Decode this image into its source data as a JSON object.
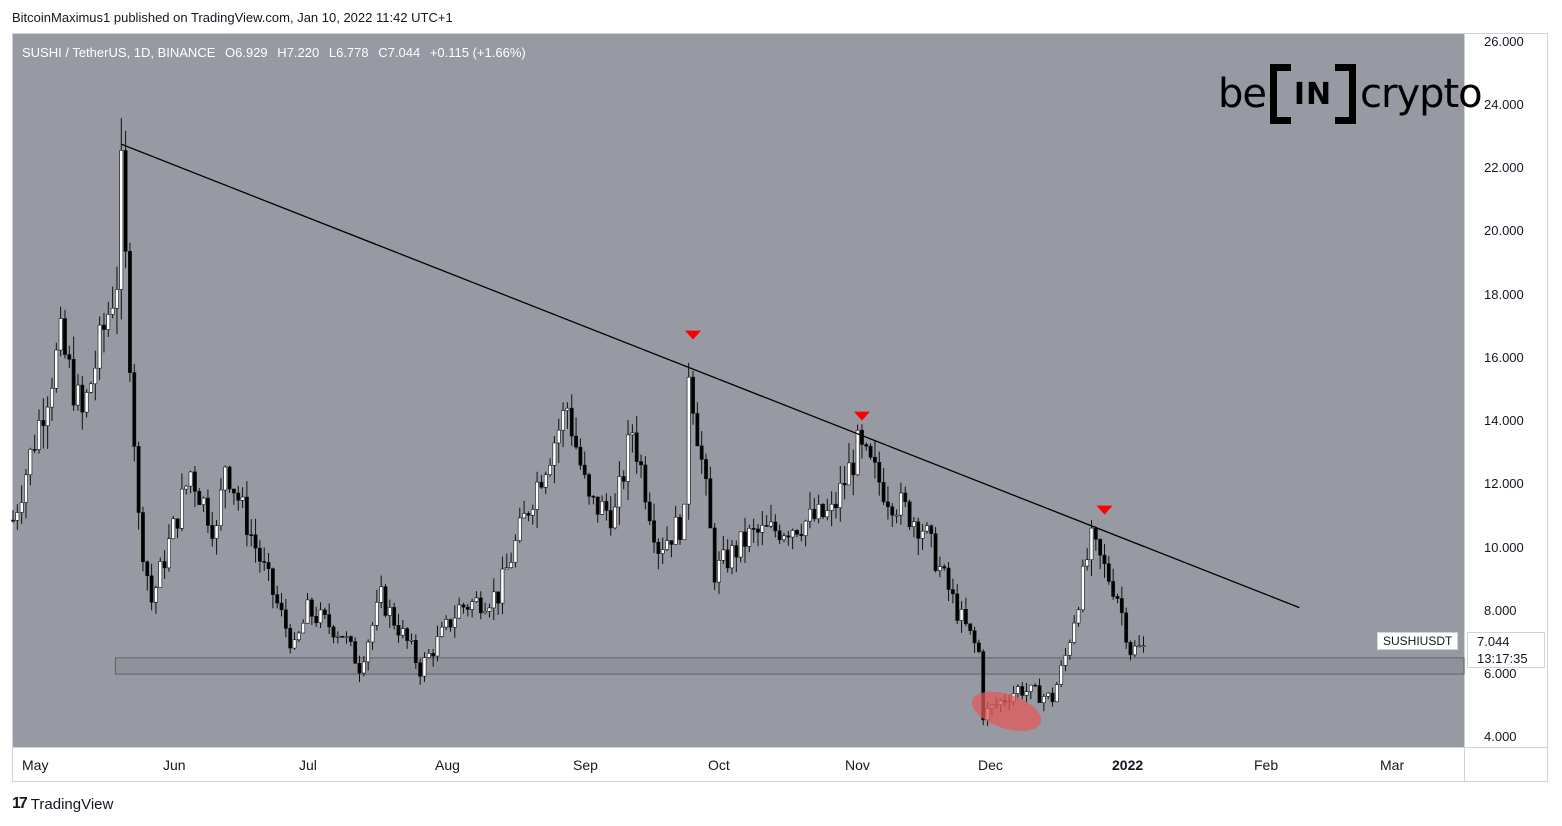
{
  "publish_line": "BitcoinMaximus1 published on TradingView.com, Jan 10, 2022 11:42 UTC+1",
  "legend": {
    "symbol": "SUSHI / TetherUS, 1D, BINANCE",
    "open_key": "O",
    "open": "6.929",
    "high_key": "H",
    "high": "7.220",
    "low_key": "L",
    "low": "6.778",
    "close_key": "C",
    "close": "7.044",
    "change": "+0.115 (+1.66%)"
  },
  "unit_badge": "USDT",
  "logo": {
    "left": "be",
    "middle": "IN",
    "right": "crypto"
  },
  "price_labels": [
    "26.000",
    "24.000",
    "22.000",
    "20.000",
    "18.000",
    "16.000",
    "14.000",
    "12.000",
    "10.000",
    "8.000",
    "6.000",
    "4.000"
  ],
  "time_labels": [
    "May",
    "Jun",
    "Jul",
    "Aug",
    "Sep",
    "Oct",
    "Nov",
    "Dec",
    "2022",
    "Feb",
    "Mar"
  ],
  "symbol_tag": "SUSHIUSDT",
  "last_price": {
    "value": "7.044",
    "timer": "13:17:35"
  },
  "watermark": {
    "mark": "17",
    "text": "TradingView"
  },
  "colors": {
    "plot_bg": "#979aa3",
    "candle_up": "#ffffff",
    "candle_down": "#000000",
    "trendline": "#000000",
    "marker": "#ff0000",
    "support_zone": "#8a8d96",
    "highlight": "#e05a5a"
  },
  "chart_data": {
    "type": "candlestick",
    "symbol": "SUSHI / TetherUS",
    "interval": "1D",
    "exchange": "BINANCE",
    "ylim": [
      4.0,
      26.0
    ],
    "y_ticks": [
      26,
      24,
      22,
      20,
      18,
      16,
      14,
      12,
      10,
      8,
      6,
      4
    ],
    "x_ticks": [
      "May",
      "Jun",
      "Jul",
      "Aug",
      "Sep",
      "Oct",
      "Nov",
      "Dec",
      "2022",
      "Feb",
      "Mar"
    ],
    "x_range": [
      "2021-04-24",
      "2022-03-25"
    ],
    "close_path": [
      {
        "date": "2021-04-24",
        "close": 11.0
      },
      {
        "date": "2021-05-05",
        "close": 16.5
      },
      {
        "date": "2021-05-10",
        "close": 14.2
      },
      {
        "date": "2021-05-18",
        "close": 18.5
      },
      {
        "date": "2021-05-19",
        "close": 21.5
      },
      {
        "date": "2021-05-23",
        "close": 11.0
      },
      {
        "date": "2021-05-26",
        "close": 8.5
      },
      {
        "date": "2021-06-04",
        "close": 12.5
      },
      {
        "date": "2021-06-10",
        "close": 10.6
      },
      {
        "date": "2021-06-12",
        "close": 12.8
      },
      {
        "date": "2021-06-20",
        "close": 9.8
      },
      {
        "date": "2021-06-28",
        "close": 7.0
      },
      {
        "date": "2021-07-01",
        "close": 8.2
      },
      {
        "date": "2021-07-09",
        "close": 7.5
      },
      {
        "date": "2021-07-13",
        "close": 6.5
      },
      {
        "date": "2021-07-18",
        "close": 8.6
      },
      {
        "date": "2021-07-25",
        "close": 7.0
      },
      {
        "date": "2021-07-27",
        "close": 6.4
      },
      {
        "date": "2021-08-05",
        "close": 8.3
      },
      {
        "date": "2021-08-14",
        "close": 8.7
      },
      {
        "date": "2021-08-22",
        "close": 11.8
      },
      {
        "date": "2021-08-30",
        "close": 14.5
      },
      {
        "date": "2021-09-04",
        "close": 11.5
      },
      {
        "date": "2021-09-10",
        "close": 11.2
      },
      {
        "date": "2021-09-14",
        "close": 13.8
      },
      {
        "date": "2021-09-20",
        "close": 10.2
      },
      {
        "date": "2021-09-26",
        "close": 11.0
      },
      {
        "date": "2021-09-27",
        "close": 15.8
      },
      {
        "date": "2021-10-01",
        "close": 11.8
      },
      {
        "date": "2021-10-03",
        "close": 9.4
      },
      {
        "date": "2021-10-11",
        "close": 10.5
      },
      {
        "date": "2021-10-20",
        "close": 10.8
      },
      {
        "date": "2021-10-30",
        "close": 11.2
      },
      {
        "date": "2021-11-05",
        "close": 13.2
      },
      {
        "date": "2021-11-12",
        "close": 11.8
      },
      {
        "date": "2021-11-20",
        "close": 10.8
      },
      {
        "date": "2021-11-28",
        "close": 8.2
      },
      {
        "date": "2021-12-03",
        "close": 6.9
      },
      {
        "date": "2021-12-04",
        "close": 5.0
      },
      {
        "date": "2021-12-12",
        "close": 5.8
      },
      {
        "date": "2021-12-20",
        "close": 5.5
      },
      {
        "date": "2021-12-23",
        "close": 6.8
      },
      {
        "date": "2021-12-28",
        "close": 9.8
      },
      {
        "date": "2021-12-29",
        "close": 10.3
      },
      {
        "date": "2022-01-04",
        "close": 8.7
      },
      {
        "date": "2022-01-07",
        "close": 7.0
      },
      {
        "date": "2022-01-10",
        "close": 7.044
      }
    ],
    "trendline": {
      "start": {
        "date": "2021-05-19",
        "price": 22.6
      },
      "end": {
        "date": "2022-02-15",
        "price": 8.3
      }
    },
    "support_zone": {
      "from": "2021-05-19",
      "to": "2022-03-25",
      "low": 6.25,
      "high": 6.75
    },
    "rejection_markers": [
      {
        "date": "2021-09-28",
        "price": 16.2
      },
      {
        "date": "2021-11-06",
        "price": 13.7
      },
      {
        "date": "2022-01-01",
        "price": 10.8
      }
    ],
    "deviation_zone": {
      "date": "2021-12-08",
      "price": 5.1
    },
    "last": {
      "open": 6.929,
      "high": 7.22,
      "low": 6.778,
      "close": 7.044,
      "change": 0.115,
      "change_pct": 1.66
    }
  }
}
